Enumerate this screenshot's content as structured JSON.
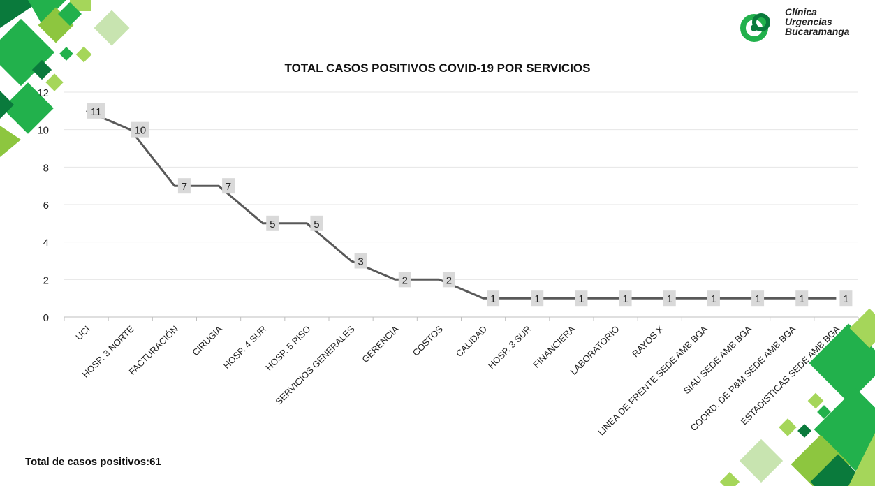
{
  "logo": {
    "line1": "Clínica",
    "line2": "Urgencias",
    "line3": "Bucaramanga"
  },
  "total": {
    "label": "Total de casos positivos:",
    "value": "61"
  },
  "colors": {
    "line": "#595959",
    "label_bg": "#d9d9d9",
    "grid": "#e6e6e6",
    "deco_dark": "#0a7a3c",
    "deco_mid": "#22b14c",
    "deco_light": "#a5d65a"
  },
  "chart_data": {
    "type": "line",
    "title": "TOTAL CASOS POSITIVOS COVID-19 POR SERVICIOS",
    "categories": [
      "UCI",
      "HOSP. 3 NORTE",
      "FACTURACIÓN",
      "CIRUGIA",
      "HOSP. 4 SUR",
      "HOSP. 5 PISO",
      "SERVICIOS GENERALES",
      "GERENCIA",
      "COSTOS",
      "CALIDAD",
      "HOSP. 3 SUR",
      "FINANCIERA",
      "LABORATORIO",
      "RAYOS X",
      "LINEA DE FRENTE SEDE AMB BGA",
      "SIAU SEDE AMB BGA",
      "COORD. DE P&M SEDE AMB BGA",
      "ESTADISTICAS SEDE AMB BGA"
    ],
    "values": [
      11,
      10,
      7,
      7,
      5,
      5,
      3,
      2,
      2,
      1,
      1,
      1,
      1,
      1,
      1,
      1,
      1,
      1
    ],
    "yticks": [
      "0",
      "2",
      "4",
      "6",
      "8",
      "10",
      "12"
    ],
    "ylim": [
      0,
      12
    ],
    "grid": true,
    "legend": "none",
    "data_labels": true
  }
}
